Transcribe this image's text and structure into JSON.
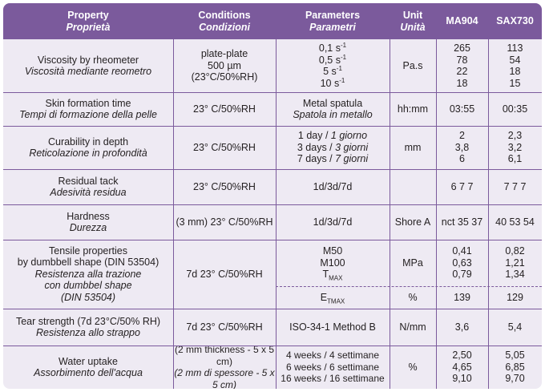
{
  "header": {
    "property": "Property",
    "property_it": "Proprietà",
    "conditions": "Conditions",
    "conditions_it": "Condizioni",
    "parameters": "Parameters",
    "parameters_it": "Parametri",
    "unit": "Unit",
    "unit_it": "Unità",
    "col1": "MA904",
    "col2": "SAX730"
  },
  "rows": [
    {
      "property": "Viscosity by rheometer",
      "property_it": "Viscosità mediante reometro",
      "conditions": "plate-plate",
      "conditions2": "500 µm (23°C/50%RH)",
      "params": [
        "0,1 s",
        "0,5 s",
        "5 s",
        "10 s"
      ],
      "param_sup": "-1",
      "unit": "Pa.s",
      "ma904": [
        "265",
        "78",
        "22",
        "18"
      ],
      "sax730": [
        "113",
        "54",
        "18",
        "15"
      ]
    },
    {
      "property": "Skin formation time",
      "property_it": "Tempi di formazione della pelle",
      "conditions": "23° C/50%RH",
      "param": "Metal spatula",
      "param_it": "Spatola in metallo",
      "unit": "hh:mm",
      "ma904": "03:55",
      "sax730": "00:35"
    },
    {
      "property": "Curability in depth",
      "property_it": "Reticolazione in profondità",
      "conditions": "23° C/50%RH",
      "params": [
        "1 day / ",
        "3 days / ",
        "7 days / "
      ],
      "params_it": [
        "1 giorno",
        "3 giorni",
        "7 giorni"
      ],
      "unit": "mm",
      "ma904": [
        "2",
        "3,8",
        "6"
      ],
      "sax730": [
        "2,3",
        "3,2",
        "6,1"
      ]
    },
    {
      "property": "Residual tack",
      "property_it": "Adesività residua",
      "conditions": "23° C/50%RH",
      "param": "1d/3d/7d",
      "unit": "",
      "ma904": "6 7 7",
      "sax730": "7 7 7"
    },
    {
      "property": "Hardness",
      "property_it": "Durezza",
      "conditions": "(3 mm) 23° C/50%RH",
      "param": "1d/3d/7d",
      "unit": "Shore A",
      "ma904": "nct 35 37",
      "sax730": "40 53 54"
    },
    {
      "property": [
        "Tensile properties",
        "by dumbbell shape (DIN 53504)"
      ],
      "property_it": [
        "Resistenza alla trazione",
        "con dumbbel shape",
        "(DIN 53504)"
      ],
      "conditions": "7d 23° C/50%RH",
      "params": [
        "M50",
        "M100",
        "T"
      ],
      "t_sub": "MAX",
      "unit": "MPa",
      "ma904": [
        "0,41",
        "0,63",
        "0,79"
      ],
      "sax730": [
        "0,82",
        "1,21",
        "1,34"
      ],
      "e_param": "E",
      "e_sub": "TMAX",
      "e_unit": "%",
      "e_ma904": "139",
      "e_sax730": "129"
    },
    {
      "property": "Tear strength (7d 23°C/50% RH)",
      "property_it": "Resistenza allo strappo",
      "conditions": "7d 23° C/50%RH",
      "param": "ISO-34-1 Method B",
      "unit": "N/mm",
      "ma904": "3,6",
      "sax730": "5,4"
    },
    {
      "property": "Water uptake",
      "property_it": "Assorbimento dell'acqua",
      "conditions": "(2 mm thickness - 5 x 5 cm)",
      "conditions_it": "(2 mm di spessore - 5 x 5 cm)",
      "params": [
        "4 weeks / 4 settimane",
        "6 weeks / 6 settimane",
        "16 weeks / 16 settimane"
      ],
      "unit": "%",
      "ma904": [
        "2,50",
        "4,65",
        "9,10"
      ],
      "sax730": [
        "5,05",
        "6,85",
        "9,70"
      ]
    }
  ]
}
